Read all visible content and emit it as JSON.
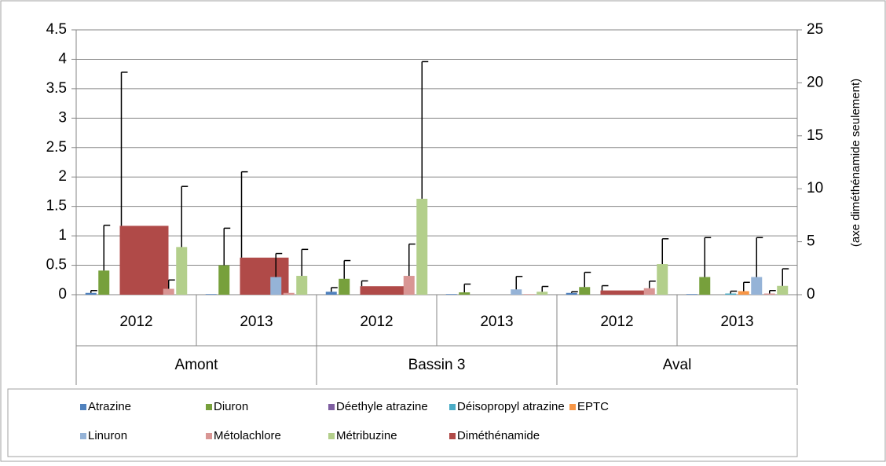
{
  "chart_data": {
    "type": "bar",
    "categories": [
      "2012",
      "2013",
      "2012",
      "2013",
      "2012",
      "2013"
    ],
    "category_groups": [
      "Amont",
      "Bassin 3",
      "Aval"
    ],
    "y2_label": "(axe diméthénamide seulement)",
    "ylim": [
      0,
      4.5
    ],
    "yticks": [
      0,
      0.5,
      1,
      1.5,
      2,
      2.5,
      3,
      3.5,
      4,
      4.5
    ],
    "y2lim": [
      0,
      25
    ],
    "y2ticks": [
      0,
      5,
      10,
      15,
      20,
      25
    ],
    "grid": true,
    "legend": "bottom",
    "series": [
      {
        "name": "Atrazine",
        "color": "#4f81bd",
        "values": [
          0.03,
          0.01,
          0.05,
          0.01,
          0.03,
          0.01
        ],
        "errors": [
          0.04,
          0,
          0.07,
          0,
          0.02,
          0
        ]
      },
      {
        "name": "Diuron",
        "color": "#77a03c",
        "values": [
          0.41,
          0.5,
          0.27,
          0.04,
          0.13,
          0.3
        ],
        "errors": [
          0.77,
          0.63,
          0.31,
          0.14,
          0.25,
          0.67
        ]
      },
      {
        "name": "Déethyle atrazine",
        "color": "#7f5fa1",
        "values": [
          0,
          0,
          0,
          0,
          0,
          0
        ],
        "errors": [
          0,
          0,
          0,
          0,
          0,
          0
        ]
      },
      {
        "name": "Déisopropyl atrazine",
        "color": "#4bacc6",
        "values": [
          0,
          0,
          0,
          0,
          0,
          0.02
        ],
        "errors": [
          0,
          0,
          0,
          0,
          0,
          0.04
        ]
      },
      {
        "name": "EPTC",
        "color": "#f79646",
        "values": [
          0,
          0,
          0,
          0,
          0,
          0.06
        ],
        "errors": [
          0,
          0,
          0,
          0,
          0,
          0.15
        ]
      },
      {
        "name": "Linuron",
        "color": "#95b3d7",
        "values": [
          0,
          0.3,
          0,
          0.09,
          0,
          0.3
        ],
        "errors": [
          0,
          0.4,
          0,
          0.22,
          0,
          0.67
        ]
      },
      {
        "name": "Métolachlore",
        "color": "#d99694",
        "values": [
          0.1,
          0.03,
          0.32,
          0.01,
          0.11,
          0.02
        ],
        "errors": [
          0.15,
          0,
          0.54,
          0,
          0.12,
          0.05
        ]
      },
      {
        "name": "Métribuzine",
        "color": "#b3cf8b",
        "values": [
          0.81,
          0.32,
          1.63,
          0.05,
          0.52,
          0.15
        ],
        "errors": [
          1.03,
          0.45,
          2.33,
          0.09,
          0.43,
          0.29
        ]
      },
      {
        "name": "Diméthénamide",
        "color": "#b04a48",
        "axis": "y2",
        "values": [
          6.5,
          3.5,
          0.8,
          0,
          0.4,
          0
        ],
        "errors": [
          14.5,
          8.1,
          0.5,
          0,
          0.45,
          0
        ]
      }
    ]
  }
}
